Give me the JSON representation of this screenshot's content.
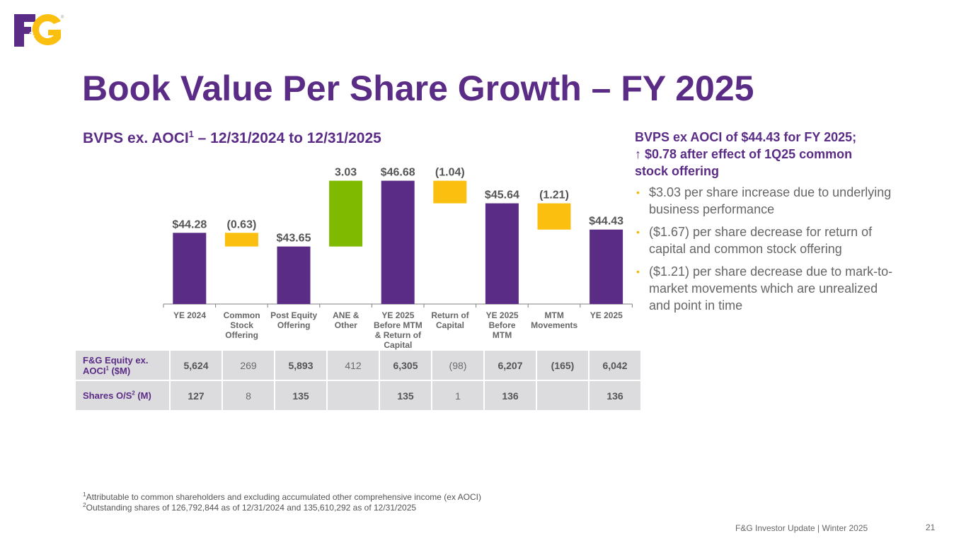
{
  "logo": {
    "text_left": "F",
    "text_amp": "&",
    "text_right": "G",
    "mark": "®"
  },
  "title": "Book Value Per Share Growth – FY 2025",
  "subtitle": {
    "main": "BVPS ex. AOCI",
    "sup": "1",
    "rest": " – 12/31/2024 to 12/31/2025"
  },
  "colors": {
    "purple": "#5b2c86",
    "gold": "#fbbf10",
    "green": "#7fba00",
    "label_gray": "#666666",
    "table_bg": "#dcdcde"
  },
  "chart_data": {
    "type": "waterfall",
    "title": "BVPS ex. AOCI – 12/31/2024 to 12/31/2025",
    "categories": [
      "YE 2024",
      "Common Stock Offering",
      "Post Equity Offering",
      "ANE & Other",
      "YE 2025 Before MTM & Return of Capital",
      "Return of Capital",
      "YE 2025 Before MTM",
      "MTM Movements",
      "YE 2025"
    ],
    "category_lines": [
      [
        "YE 2024"
      ],
      [
        "Common",
        "Stock",
        "Offering"
      ],
      [
        "Post Equity",
        "Offering"
      ],
      [
        "ANE &",
        "Other"
      ],
      [
        "YE 2025",
        "Before MTM",
        "& Return of",
        "Capital"
      ],
      [
        "Return of",
        "Capital"
      ],
      [
        "YE 2025",
        "Before",
        "MTM"
      ],
      [
        "MTM",
        "Movements"
      ],
      [
        "YE 2025"
      ]
    ],
    "bars": [
      {
        "kind": "total",
        "value": 44.28,
        "label": "$44.28"
      },
      {
        "kind": "decrease",
        "value": -0.63,
        "label": "(0.63)"
      },
      {
        "kind": "total",
        "value": 43.65,
        "label": "$43.65"
      },
      {
        "kind": "increase",
        "value": 3.03,
        "label": "3.03"
      },
      {
        "kind": "total",
        "value": 46.68,
        "label": "$46.68"
      },
      {
        "kind": "decrease",
        "value": -1.04,
        "label": "(1.04)"
      },
      {
        "kind": "total",
        "value": 45.64,
        "label": "$45.64"
      },
      {
        "kind": "decrease",
        "value": -1.21,
        "label": "(1.21)"
      },
      {
        "kind": "total",
        "value": 44.43,
        "label": "$44.43"
      }
    ],
    "y_axis_visible": false,
    "ylim": [
      41.0,
      47.5
    ],
    "grid": false,
    "legend": "none"
  },
  "table": {
    "rows": [
      {
        "header": "F&G Equity ex. AOCI",
        "header_sup": "1",
        "header_suffix": " ($M)",
        "cells": [
          {
            "v": "5,624",
            "bold": true
          },
          {
            "v": "269",
            "bold": false
          },
          {
            "v": "5,893",
            "bold": true
          },
          {
            "v": "412",
            "bold": false
          },
          {
            "v": "6,305",
            "bold": true
          },
          {
            "v": "(98)",
            "bold": false
          },
          {
            "v": "6,207",
            "bold": true
          },
          {
            "v": "(165)",
            "bold": true
          },
          {
            "v": "6,042",
            "bold": true
          }
        ]
      },
      {
        "header": "Shares O/S",
        "header_sup": "2",
        "header_suffix": " (M)",
        "cells": [
          {
            "v": "127",
            "bold": true
          },
          {
            "v": "8",
            "bold": false
          },
          {
            "v": "135",
            "bold": true
          },
          {
            "v": "",
            "bold": false
          },
          {
            "v": "135",
            "bold": true
          },
          {
            "v": "1",
            "bold": false
          },
          {
            "v": "136",
            "bold": true
          },
          {
            "v": "",
            "bold": false
          },
          {
            "v": "136",
            "bold": true
          }
        ]
      }
    ]
  },
  "side": {
    "heading_lines": [
      "BVPS ex AOCI of $44.43 for FY 2025;",
      "↑ $0.78 after effect of 1Q25 common",
      "stock offering"
    ],
    "bullet_char": "•",
    "bullets": [
      "$3.03 per share increase due to underlying business performance",
      "($1.67) per share decrease for return of capital and common stock offering",
      "($1.21) per share decrease due to mark-to-market movements which are unrealized and point in time"
    ]
  },
  "footnotes": [
    {
      "sup": "1",
      "text": "Attributable to common shareholders and excluding accumulated other comprehensive income (ex AOCI)"
    },
    {
      "sup": "2",
      "text": "Outstanding shares of 126,792,844 as of 12/31/2024 and 135,610,292 as of 12/31/2025"
    }
  ],
  "footer": {
    "text": "F&G Investor Update |  Winter 2025",
    "page": "21"
  }
}
